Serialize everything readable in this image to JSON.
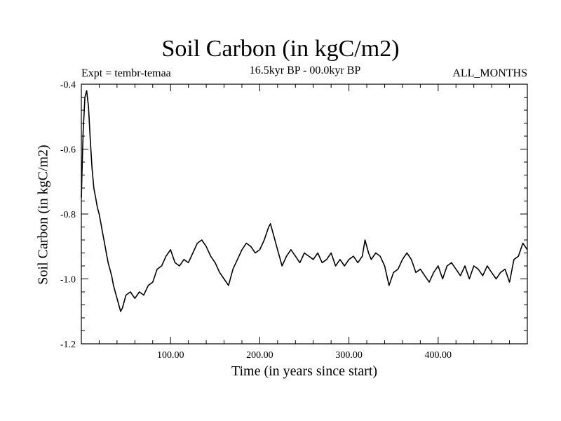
{
  "chart_data": {
    "type": "line",
    "title": "Soil Carbon (in kgC/m2)",
    "subtitle": "16.5kyr BP - 00.0kyr BP",
    "left_label": "Expt = tembr-temaa",
    "right_label": "ALL_MONTHS",
    "xlabel": "Time (in years since start)",
    "ylabel": "Soil Carbon (in kgC/m2)",
    "xlim": [
      0,
      500
    ],
    "ylim": [
      -1.2,
      -0.4
    ],
    "x_ticks": [
      {
        "value": 100,
        "label": "100.00"
      },
      {
        "value": 200,
        "label": "200.00"
      },
      {
        "value": 300,
        "label": "300.00"
      },
      {
        "value": 400,
        "label": "400.00"
      }
    ],
    "y_ticks": [
      {
        "value": -0.4,
        "label": "-0.4"
      },
      {
        "value": -0.6,
        "label": "-0.6"
      },
      {
        "value": -0.8,
        "label": "-0.8"
      },
      {
        "value": -1.0,
        "label": "-1.0"
      },
      {
        "value": -1.2,
        "label": "-1.2"
      }
    ],
    "grid": false,
    "series": [
      {
        "color": "#000000",
        "x": [
          0,
          2,
          4,
          6,
          8,
          10,
          12,
          14,
          16,
          18,
          20,
          22,
          24,
          26,
          28,
          30,
          32,
          34,
          36,
          38,
          40,
          42,
          44,
          46,
          48,
          50,
          55,
          60,
          65,
          70,
          75,
          80,
          85,
          90,
          95,
          100,
          105,
          110,
          115,
          120,
          125,
          130,
          135,
          140,
          145,
          150,
          155,
          160,
          165,
          170,
          175,
          180,
          185,
          190,
          195,
          200,
          205,
          210,
          212,
          215,
          220,
          225,
          230,
          235,
          240,
          245,
          250,
          255,
          260,
          265,
          270,
          275,
          280,
          285,
          290,
          295,
          300,
          305,
          310,
          315,
          318,
          322,
          325,
          330,
          335,
          340,
          345,
          350,
          355,
          360,
          365,
          370,
          375,
          380,
          385,
          390,
          395,
          400,
          405,
          410,
          415,
          420,
          425,
          430,
          435,
          440,
          445,
          450,
          455,
          460,
          465,
          470,
          475,
          480,
          485,
          490,
          495,
          500
        ],
        "y": [
          -0.75,
          -0.55,
          -0.44,
          -0.42,
          -0.47,
          -0.57,
          -0.66,
          -0.72,
          -0.75,
          -0.78,
          -0.8,
          -0.83,
          -0.86,
          -0.89,
          -0.92,
          -0.95,
          -0.97,
          -0.99,
          -1.02,
          -1.04,
          -1.06,
          -1.08,
          -1.1,
          -1.09,
          -1.07,
          -1.05,
          -1.04,
          -1.06,
          -1.04,
          -1.05,
          -1.02,
          -1.01,
          -0.97,
          -0.96,
          -0.93,
          -0.91,
          -0.95,
          -0.96,
          -0.94,
          -0.95,
          -0.92,
          -0.89,
          -0.88,
          -0.9,
          -0.93,
          -0.95,
          -0.98,
          -1.0,
          -1.02,
          -0.97,
          -0.94,
          -0.91,
          -0.89,
          -0.9,
          -0.92,
          -0.91,
          -0.88,
          -0.84,
          -0.83,
          -0.86,
          -0.91,
          -0.96,
          -0.93,
          -0.91,
          -0.93,
          -0.95,
          -0.92,
          -0.93,
          -0.94,
          -0.92,
          -0.95,
          -0.94,
          -0.92,
          -0.96,
          -0.94,
          -0.96,
          -0.94,
          -0.93,
          -0.95,
          -0.93,
          -0.88,
          -0.92,
          -0.94,
          -0.92,
          -0.93,
          -0.96,
          -1.02,
          -0.98,
          -0.97,
          -0.94,
          -0.92,
          -0.94,
          -0.98,
          -0.97,
          -0.99,
          -1.01,
          -0.98,
          -0.96,
          -1.0,
          -0.96,
          -0.95,
          -0.97,
          -0.99,
          -0.96,
          -1.0,
          -0.96,
          -0.97,
          -0.99,
          -0.96,
          -0.98,
          -1.0,
          -0.98,
          -0.97,
          -1.01,
          -0.94,
          -0.93,
          -0.89,
          -0.91
        ]
      }
    ]
  }
}
